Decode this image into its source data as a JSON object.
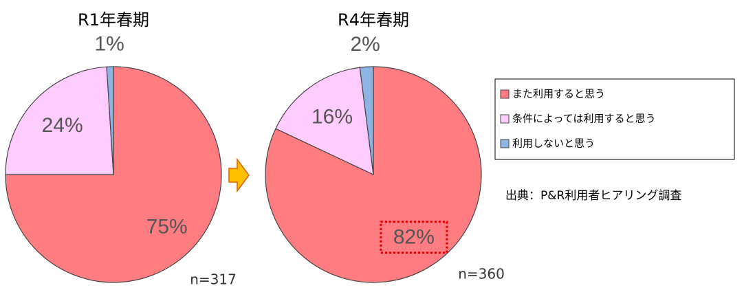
{
  "chart_data": [
    {
      "type": "pie",
      "title": "R1年春期",
      "values": [
        75,
        24,
        1
      ],
      "value_labels": [
        "75%",
        "24%",
        "1%"
      ],
      "colors": [
        "#ff7c80",
        "#ffccff",
        "#8db4e2"
      ],
      "note": "n=317"
    },
    {
      "type": "pie",
      "title": "R4年春期",
      "values": [
        82,
        16,
        2
      ],
      "value_labels": [
        "82%",
        "16%",
        "2%"
      ],
      "colors": [
        "#ff7c80",
        "#ffccff",
        "#8db4e2"
      ],
      "note": "n=360"
    }
  ],
  "legend": {
    "items": [
      "また利用すると思う",
      "条件によっては利用すると思う",
      "利用しないと思う"
    ],
    "colors": [
      "#ff7c80",
      "#ffccff",
      "#8db4e2"
    ]
  },
  "source": "出典：P&R利用者ヒアリング調査"
}
